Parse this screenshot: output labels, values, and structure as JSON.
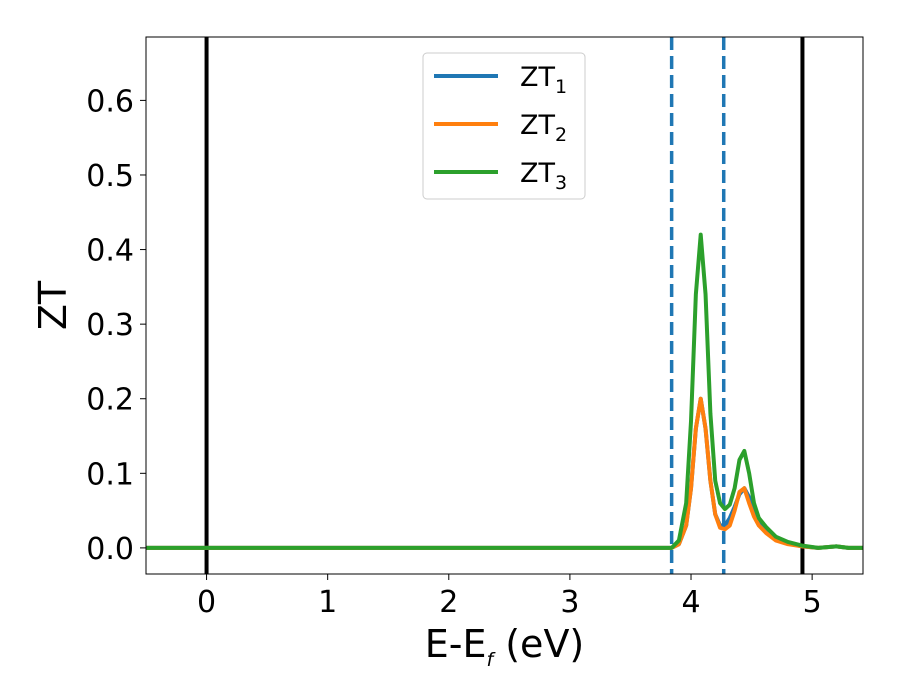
{
  "chart_data": {
    "type": "line",
    "title": "",
    "xlabel": {
      "main": "E-E",
      "sub": "f",
      "tail": " (eV)"
    },
    "ylabel": "ZT",
    "xlim": [
      -0.5,
      5.42
    ],
    "ylim": [
      -0.035,
      0.685
    ],
    "xticks": [
      0,
      1,
      2,
      3,
      4,
      5
    ],
    "xtick_labels": [
      "0",
      "1",
      "2",
      "3",
      "4",
      "5"
    ],
    "yticks": [
      0.0,
      0.1,
      0.2,
      0.3,
      0.4,
      0.5,
      0.6
    ],
    "ytick_labels": [
      "0.0",
      "0.1",
      "0.2",
      "0.3",
      "0.4",
      "0.5",
      "0.6"
    ],
    "grid": false,
    "legend_position": "top-center",
    "vertical_lines": [
      {
        "x": 0.0,
        "style": "solid",
        "color": "#000000"
      },
      {
        "x": 4.92,
        "style": "solid",
        "color": "#000000"
      },
      {
        "x": 3.84,
        "style": "dashed",
        "color": "#1f77b4"
      },
      {
        "x": 4.27,
        "style": "dashed",
        "color": "#1f77b4"
      }
    ],
    "series": [
      {
        "name": "ZT",
        "sub": "1",
        "color": "#1f77b4",
        "x": [
          -0.5,
          3.6,
          3.84,
          3.9,
          3.96,
          4.0,
          4.04,
          4.08,
          4.12,
          4.16,
          4.2,
          4.24,
          4.28,
          4.32,
          4.36,
          4.4,
          4.44,
          4.48,
          4.52,
          4.56,
          4.62,
          4.7,
          4.8,
          4.92,
          5.05,
          5.2,
          5.3,
          5.42
        ],
        "y": [
          0.0,
          0.0,
          0.0,
          0.005,
          0.03,
          0.08,
          0.16,
          0.2,
          0.16,
          0.09,
          0.045,
          0.03,
          0.03,
          0.04,
          0.055,
          0.072,
          0.08,
          0.068,
          0.048,
          0.035,
          0.025,
          0.012,
          0.006,
          0.002,
          0.0,
          0.002,
          0.0,
          0.0
        ]
      },
      {
        "name": "ZT",
        "sub": "2",
        "color": "#ff7f0e",
        "x": [
          -0.5,
          3.6,
          3.84,
          3.9,
          3.96,
          4.0,
          4.04,
          4.08,
          4.12,
          4.16,
          4.2,
          4.24,
          4.28,
          4.32,
          4.36,
          4.4,
          4.44,
          4.48,
          4.52,
          4.56,
          4.62,
          4.7,
          4.8,
          4.92,
          5.05,
          5.2,
          5.3,
          5.42
        ],
        "y": [
          0.0,
          0.0,
          0.0,
          0.005,
          0.03,
          0.08,
          0.16,
          0.2,
          0.16,
          0.09,
          0.045,
          0.027,
          0.025,
          0.03,
          0.05,
          0.075,
          0.08,
          0.06,
          0.042,
          0.03,
          0.02,
          0.01,
          0.005,
          0.002,
          0.0,
          0.002,
          0.0,
          0.0
        ]
      },
      {
        "name": "ZT",
        "sub": "3",
        "color": "#2ca02c",
        "x": [
          -0.5,
          3.6,
          3.84,
          3.9,
          3.96,
          4.0,
          4.04,
          4.08,
          4.12,
          4.16,
          4.2,
          4.24,
          4.28,
          4.32,
          4.36,
          4.4,
          4.44,
          4.48,
          4.52,
          4.56,
          4.62,
          4.7,
          4.8,
          4.92,
          5.05,
          5.2,
          5.3,
          5.42
        ],
        "y": [
          0.0,
          0.0,
          0.0,
          0.01,
          0.06,
          0.17,
          0.34,
          0.42,
          0.34,
          0.18,
          0.09,
          0.06,
          0.052,
          0.058,
          0.08,
          0.118,
          0.13,
          0.1,
          0.06,
          0.04,
          0.028,
          0.015,
          0.008,
          0.003,
          0.0,
          0.002,
          0.0,
          0.0
        ]
      }
    ]
  }
}
